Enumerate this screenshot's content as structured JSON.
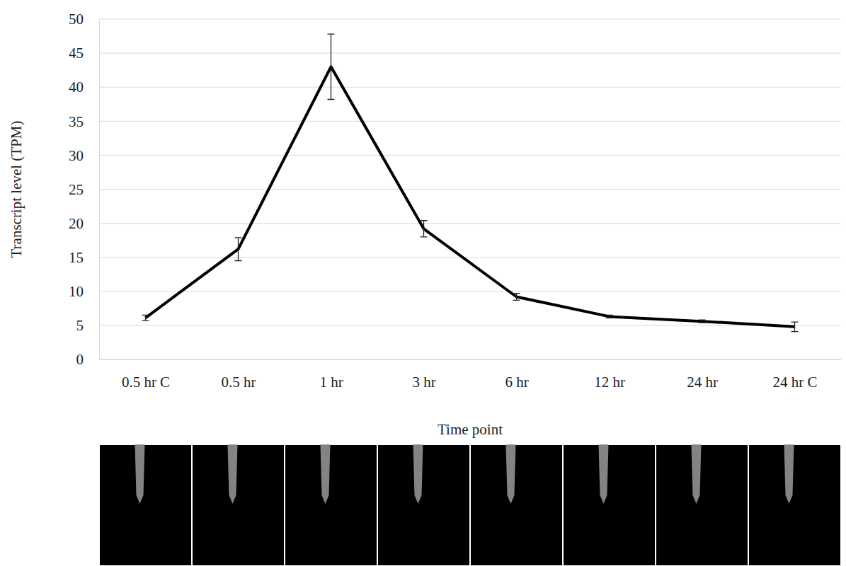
{
  "chart_data": {
    "type": "line",
    "x_label": "Time point",
    "y_label": "Transcript level (TPM)",
    "categories": [
      "0.5 hr C",
      "0.5 hr",
      "1 hr",
      "3 hr",
      "6 hr",
      "12 hr",
      "24 hr",
      "24 hr C"
    ],
    "values": [
      6.1,
      16.2,
      43.0,
      19.2,
      9.2,
      6.3,
      5.6,
      4.8
    ],
    "errors": [
      0.4,
      1.7,
      4.8,
      1.2,
      0.5,
      0.2,
      0.2,
      0.7
    ],
    "color": "#000000",
    "ylim": [
      0,
      50
    ],
    "yticks": [
      0,
      5,
      10,
      15,
      20,
      25,
      30,
      35,
      40,
      45,
      50
    ],
    "grid": true
  }
}
